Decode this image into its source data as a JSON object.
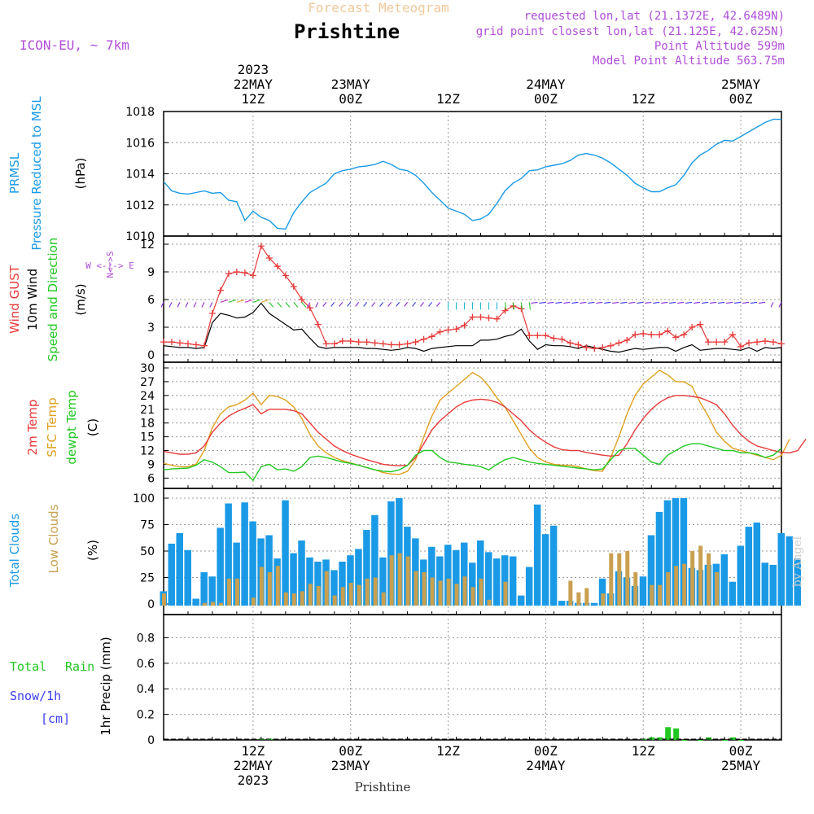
{
  "header": {
    "faint_title": "Forecast Meteogram",
    "location": "Prishtine",
    "model": "ICON-EU, ~ 7km",
    "requested": "requested lon,lat (21.1372E, 42.6489N)",
    "closest": "grid point closest lon,lat (21.125E, 42.625N)",
    "point_alt": "Point Altitude 599m",
    "model_alt": "Model Point Altitude 563.75m"
  },
  "footer": {
    "location": "Prishtine",
    "credit": "by Angel"
  },
  "colors": {
    "pressure": "#1a9ae6",
    "gust": "#e83a3a",
    "wind10m": "#000000",
    "t2m": "#e83a3a",
    "tsfc": "#e0a020",
    "dewpt": "#22c822",
    "total_clouds": "#1a9ae6",
    "low_clouds": "#c8a050",
    "rain": "#22c822",
    "snow": "#3c3cf0",
    "purple": "#b04ed8"
  },
  "top_axis": [
    {
      "hour": 12,
      "lines": [
        "2023",
        "22MAY",
        "12Z"
      ]
    },
    {
      "hour": 24,
      "lines": [
        "23MAY",
        "00Z"
      ]
    },
    {
      "hour": 36,
      "lines": [
        "12Z"
      ]
    },
    {
      "hour": 48,
      "lines": [
        "24MAY",
        "00Z"
      ]
    },
    {
      "hour": 60,
      "lines": [
        "12Z"
      ]
    },
    {
      "hour": 72,
      "lines": [
        "25MAY",
        "00Z"
      ]
    }
  ],
  "bottom_axis": [
    {
      "hour": 12,
      "lines": [
        "12Z",
        "22MAY",
        "2023"
      ]
    },
    {
      "hour": 24,
      "lines": [
        "00Z",
        "23MAY"
      ]
    },
    {
      "hour": 36,
      "lines": [
        "12Z"
      ]
    },
    {
      "hour": 48,
      "lines": [
        "00Z",
        "24MAY"
      ]
    },
    {
      "hour": 60,
      "lines": [
        "12Z"
      ]
    },
    {
      "hour": 72,
      "lines": [
        "00Z",
        "25MAY"
      ]
    }
  ],
  "panel_labels": {
    "pressure": {
      "a": "PRMSL",
      "b": "Pressure Reduced to MSL",
      "unit": "(hPa)"
    },
    "wind": {
      "a": "Wind GUST",
      "b": "10m Wind",
      "c": "Speed and Direction",
      "unit": "(m/s)",
      "compass_v": "N<->S",
      "compass_h": "W <-|-> E"
    },
    "temp": {
      "a": "2m Temp",
      "b": "SFC Temp",
      "c": "dewpt Temp",
      "unit": "(C)"
    },
    "clouds": {
      "a": "Total Clouds",
      "b": "Low Clouds",
      "unit": "(%)"
    },
    "precip": {
      "a": "Total",
      "b": "Rain",
      "c": "Snow/1h",
      "d": "[cm]",
      "unit": "1hr Precip (mm)"
    }
  },
  "chart_data": [
    {
      "type": "line",
      "id": "pressure",
      "x_unit": "hours from 22MAY 00Z",
      "xlim": [
        1,
        77
      ],
      "ylim": [
        1010,
        1018
      ],
      "yticks": [
        1010,
        1012,
        1014,
        1016,
        1018
      ],
      "series": [
        {
          "name": "PRMSL",
          "x_start": 1,
          "values": [
            1013.5,
            1012.9,
            1012.75,
            1012.7,
            1012.8,
            1012.9,
            1012.75,
            1012.8,
            1012.3,
            1012.2,
            1011.0,
            1011.6,
            1011.2,
            1011.0,
            1010.5,
            1010.45,
            1011.5,
            1012.2,
            1012.8,
            1013.1,
            1013.4,
            1014.0,
            1014.2,
            1014.3,
            1014.45,
            1014.5,
            1014.6,
            1014.8,
            1014.6,
            1014.3,
            1014.2,
            1013.9,
            1013.4,
            1012.8,
            1012.3,
            1011.8,
            1011.6,
            1011.4,
            1011.0,
            1011.1,
            1011.4,
            1012.1,
            1012.9,
            1013.4,
            1013.7,
            1014.2,
            1014.25,
            1014.45,
            1014.55,
            1014.65,
            1014.85,
            1015.2,
            1015.3,
            1015.2,
            1015.0,
            1014.7,
            1014.3,
            1013.9,
            1013.4,
            1013.1,
            1012.85,
            1012.85,
            1013.1,
            1013.3,
            1013.9,
            1014.7,
            1015.2,
            1015.5,
            1015.9,
            1016.15,
            1016.1,
            1016.4,
            1016.7,
            1017.0,
            1017.3,
            1017.5,
            1017.5
          ]
        }
      ]
    },
    {
      "type": "line",
      "id": "wind",
      "xlim": [
        1,
        77
      ],
      "ylim": [
        0,
        12
      ],
      "yticks": [
        0,
        3,
        6,
        9,
        12
      ],
      "series": [
        {
          "name": "Wind GUST",
          "x_start": 1,
          "marker": "+",
          "values": [
            1.4,
            1.4,
            1.3,
            1.2,
            1.1,
            1.0,
            4.5,
            7.0,
            8.8,
            9.0,
            8.9,
            8.6,
            11.8,
            10.5,
            9.6,
            8.6,
            7.4,
            6.0,
            5.1,
            3.3,
            1.2,
            1.2,
            1.5,
            1.5,
            1.4,
            1.4,
            1.3,
            1.2,
            1.1,
            1.1,
            1.2,
            1.4,
            1.7,
            2.0,
            2.5,
            2.7,
            2.8,
            3.2,
            4.1,
            4.1,
            4.0,
            3.9,
            4.8,
            5.3,
            5.0,
            2.1,
            2.1,
            2.1,
            1.8,
            1.7,
            1.3,
            1.1,
            0.8,
            0.7,
            0.8,
            1.0,
            1.3,
            1.6,
            2.2,
            2.3,
            2.2,
            2.2,
            2.6,
            1.9,
            2.2,
            3.0,
            3.3,
            1.4,
            1.4,
            1.4,
            2.2,
            0.9,
            1.3,
            1.4,
            1.5,
            1.4,
            1.2
          ]
        },
        {
          "name": "10m Wind",
          "x_start": 1,
          "values": [
            1.0,
            0.9,
            0.8,
            0.8,
            0.7,
            0.8,
            3.5,
            4.5,
            4.3,
            4.0,
            4.1,
            4.6,
            5.6,
            4.5,
            3.9,
            3.3,
            2.7,
            2.8,
            1.8,
            0.9,
            0.7,
            0.8,
            0.8,
            0.8,
            0.8,
            0.7,
            0.7,
            0.6,
            0.5,
            0.6,
            0.8,
            0.7,
            0.4,
            0.7,
            0.8,
            0.9,
            1.0,
            1.0,
            1.0,
            1.6,
            1.6,
            1.7,
            2.0,
            2.2,
            2.8,
            1.5,
            0.6,
            1.1,
            1.0,
            1.0,
            0.9,
            0.7,
            1.0,
            0.8,
            0.6,
            0.4,
            0.3,
            0.5,
            0.7,
            0.6,
            0.7,
            0.8,
            0.8,
            0.4,
            0.8,
            1.1,
            0.5,
            0.6,
            0.7,
            0.7,
            0.6,
            0.5,
            0.8,
            0.4,
            0.8,
            0.7,
            0.8
          ]
        }
      ]
    },
    {
      "type": "line",
      "id": "temperature",
      "xlim": [
        1,
        77
      ],
      "ylim": [
        5,
        30
      ],
      "yticks": [
        6,
        9,
        12,
        15,
        18,
        21,
        24,
        27,
        30
      ],
      "series": [
        {
          "name": "2m Temp",
          "x_start": 1,
          "values": [
            11.8,
            11.5,
            11.2,
            11.2,
            11.5,
            13.0,
            16.0,
            18.0,
            19.5,
            20.5,
            21.2,
            22.0,
            20.0,
            21.0,
            21.0,
            21.0,
            20.7,
            20.0,
            18.0,
            16.0,
            14.5,
            13.0,
            12.0,
            11.2,
            10.6,
            10.0,
            9.5,
            9.0,
            8.8,
            8.7,
            8.8,
            10.5,
            13.5,
            16.5,
            18.5,
            20.0,
            21.5,
            22.5,
            23.0,
            23.2,
            23.0,
            22.5,
            21.5,
            20.0,
            18.5,
            16.5,
            15.0,
            13.8,
            12.8,
            12.2,
            12.0,
            12.0,
            11.6,
            11.3,
            11.0,
            10.8,
            11.0,
            13.5,
            16.5,
            19.0,
            21.0,
            22.5,
            23.5,
            24.0,
            24.0,
            23.8,
            23.5,
            22.8,
            22.0,
            20.0,
            17.5,
            15.5,
            14.0,
            13.0,
            12.5,
            12.0,
            11.6,
            11.5,
            12.0,
            14.5
          ]
        },
        {
          "name": "SFC Temp",
          "x_start": 1,
          "values": [
            9.2,
            8.8,
            8.5,
            8.5,
            9.0,
            12.0,
            17.0,
            20.0,
            21.5,
            22.0,
            23.0,
            24.5,
            22.0,
            24.0,
            23.8,
            23.0,
            21.5,
            19.0,
            15.5,
            13.0,
            11.5,
            10.5,
            9.8,
            9.3,
            8.8,
            8.3,
            7.8,
            7.2,
            6.9,
            6.8,
            7.5,
            10.0,
            15.0,
            19.5,
            23.0,
            24.5,
            26.0,
            27.5,
            29.0,
            28.0,
            26.0,
            23.5,
            21.5,
            18.5,
            15.5,
            12.5,
            10.5,
            9.5,
            9.0,
            8.8,
            8.8,
            8.5,
            8.0,
            7.6,
            7.5,
            10.5,
            15.0,
            20.0,
            24.0,
            26.5,
            28.0,
            29.5,
            28.5,
            27.0,
            27.0,
            26.0,
            22.5,
            19.5,
            16.0,
            14.0,
            12.5,
            12.0,
            11.5,
            11.0,
            10.5,
            10.0,
            11.0,
            14.5
          ]
        },
        {
          "name": "dewpt Temp",
          "x_start": 1,
          "values": [
            7.8,
            8.0,
            8.1,
            8.2,
            8.8,
            10.0,
            9.5,
            8.5,
            7.2,
            7.2,
            7.3,
            5.5,
            8.5,
            9.0,
            7.8,
            8.0,
            7.5,
            8.5,
            10.5,
            10.8,
            10.5,
            10.0,
            9.5,
            9.2,
            8.8,
            8.3,
            7.8,
            7.5,
            7.4,
            7.8,
            8.8,
            11.0,
            12.0,
            12.0,
            10.5,
            9.5,
            9.3,
            9.0,
            8.8,
            8.5,
            7.8,
            9.0,
            10.0,
            10.5,
            10.0,
            9.5,
            9.2,
            9.0,
            8.8,
            8.6,
            8.4,
            8.2,
            8.0,
            7.8,
            8.0,
            10.0,
            12.0,
            12.5,
            12.5,
            11.0,
            9.5,
            9.0,
            11.0,
            12.0,
            13.0,
            13.5,
            13.5,
            13.0,
            12.5,
            12.0,
            12.0,
            11.5,
            11.5,
            11.2,
            10.5,
            11.0,
            12.5
          ]
        }
      ]
    },
    {
      "type": "bar",
      "id": "clouds",
      "xlim": [
        1,
        77
      ],
      "ylim": [
        0,
        100
      ],
      "yticks": [
        0,
        25,
        50,
        75,
        100
      ],
      "series": [
        {
          "name": "Total Clouds",
          "x_start": 1,
          "values": [
            12,
            57,
            67,
            51,
            5,
            30,
            26,
            72,
            95,
            58,
            96,
            78,
            62,
            65,
            43,
            98,
            48,
            60,
            44,
            40,
            42,
            32,
            40,
            46,
            52,
            70,
            84,
            44,
            97,
            100,
            73,
            62,
            42,
            54,
            45,
            56,
            51,
            58,
            39,
            60,
            49,
            43,
            46,
            45,
            8,
            35,
            94,
            66,
            74,
            3,
            3,
            1,
            1,
            1,
            24,
            10,
            31,
            25,
            17,
            26,
            65,
            87,
            98,
            100,
            100,
            34,
            32,
            37,
            38,
            47,
            21,
            55,
            73,
            77,
            39,
            37,
            67,
            64,
            43
          ]
        },
        {
          "name": "Low Clouds",
          "x_start": 1,
          "values": [
            10,
            0,
            0,
            0,
            0,
            1,
            2,
            1,
            24,
            24,
            0,
            6,
            35,
            30,
            36,
            11,
            10,
            12,
            19,
            17,
            31,
            8,
            16,
            20,
            18,
            24,
            25,
            11,
            46,
            48,
            45,
            31,
            30,
            25,
            22,
            24,
            19,
            26,
            16,
            24,
            4,
            0,
            21,
            0,
            0,
            0,
            0,
            0,
            0,
            0,
            22,
            11,
            15,
            0,
            10,
            48,
            48,
            50,
            30,
            0,
            18,
            18,
            30,
            36,
            38,
            50,
            55,
            48,
            30,
            0,
            0,
            0,
            0,
            0,
            0,
            0,
            0,
            0,
            0
          ]
        }
      ]
    },
    {
      "type": "bar",
      "id": "precipitation",
      "xlim": [
        1,
        77
      ],
      "ylim": [
        0,
        1.0
      ],
      "yticks": [
        0,
        0.2,
        0.4,
        0.6,
        0.8
      ],
      "series": [
        {
          "name": "Total Rain",
          "x_points": [
            13,
            14,
            60,
            61,
            62,
            63,
            64,
            65,
            67,
            68,
            70,
            71,
            72
          ],
          "values": [
            0.01,
            0.01,
            0.01,
            0.02,
            0.02,
            0.1,
            0.09,
            0.0,
            0.0,
            0.02,
            0.0,
            0.02,
            0.0
          ]
        }
      ]
    }
  ]
}
